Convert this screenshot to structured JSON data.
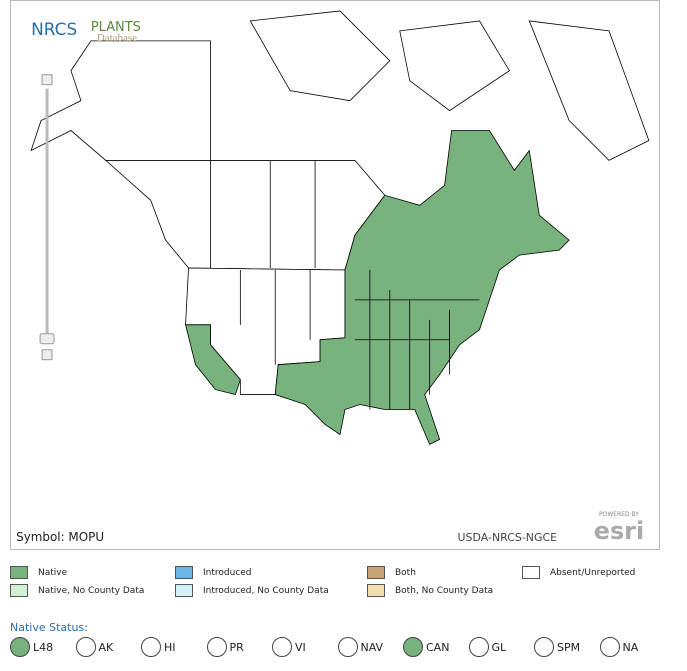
{
  "header": {
    "agency": "NRCS",
    "title": "PLANTS",
    "subtitle": "Database"
  },
  "map": {
    "symbol": "Symbol: MOPU",
    "credit": "USDA-NRCS-NGCE",
    "powered_by": "POWERED BY",
    "esri": "esri"
  },
  "legend": [
    {
      "label": "Native",
      "color": "#78b27c"
    },
    {
      "label": "Native, No County Data",
      "color": "#d3f0d3"
    },
    {
      "label": "Introduced",
      "color": "#6cb5e6"
    },
    {
      "label": "Introduced, No County Data",
      "color": "#cff3f6"
    },
    {
      "label": "Both",
      "color": "#c8a37a"
    },
    {
      "label": "Both, No County Data",
      "color": "#f3deaf"
    },
    {
      "label": "Absent/Unreported",
      "color": "#ffffff"
    }
  ],
  "native_status": {
    "title": "Native Status:",
    "options": [
      {
        "label": "L48",
        "checked": true
      },
      {
        "label": "AK",
        "checked": false
      },
      {
        "label": "HI",
        "checked": false
      },
      {
        "label": "PR",
        "checked": false
      },
      {
        "label": "VI",
        "checked": false
      },
      {
        "label": "NAV",
        "checked": false
      },
      {
        "label": "CAN",
        "checked": true
      },
      {
        "label": "GL",
        "checked": false
      },
      {
        "label": "SPM",
        "checked": false
      },
      {
        "label": "NA",
        "checked": false
      }
    ]
  }
}
